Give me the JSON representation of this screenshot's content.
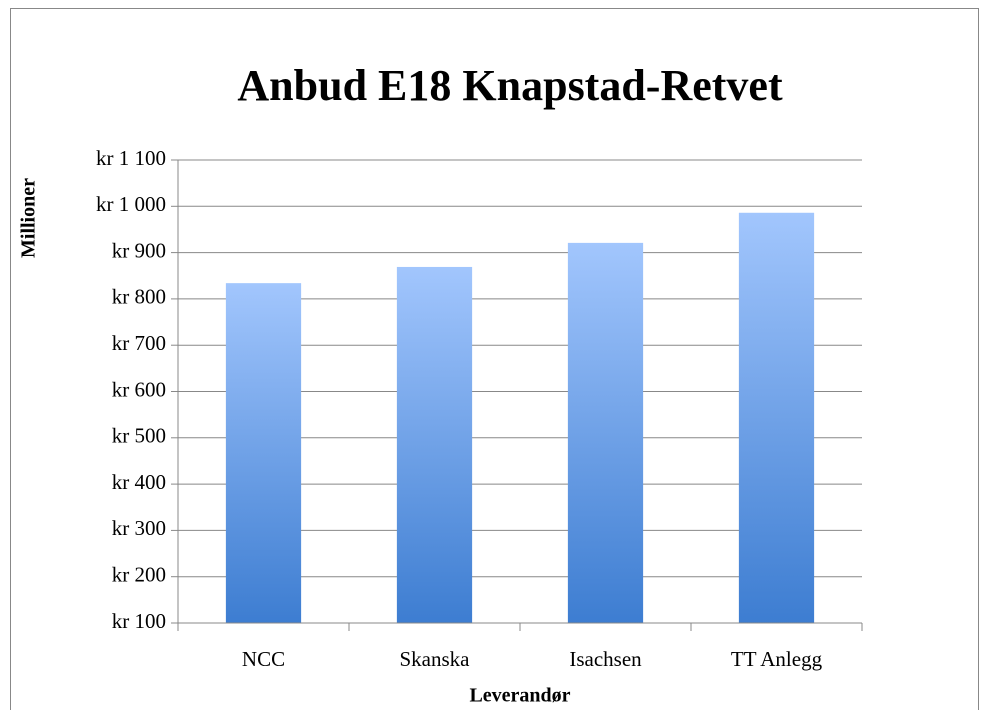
{
  "chart_data": {
    "type": "bar",
    "title": "Anbud  E18 Knapstad-Retvet",
    "x_label": "Leverandør",
    "y_label": "Millioner",
    "categories": [
      "NCC",
      "Skanska",
      "Isachsen",
      "TT Anlegg"
    ],
    "values": [
      834,
      869,
      921,
      986
    ],
    "gradient": [
      "#a2c6fd",
      "#3d7dd1"
    ],
    "ylim": [
      100,
      1100
    ],
    "yticks": [
      {
        "value": 100,
        "label": "kr 100"
      },
      {
        "value": 200,
        "label": "kr 200"
      },
      {
        "value": 300,
        "label": "kr 300"
      },
      {
        "value": 400,
        "label": "kr 400"
      },
      {
        "value": 500,
        "label": "kr 500"
      },
      {
        "value": 600,
        "label": "kr 600"
      },
      {
        "value": 700,
        "label": "kr 700"
      },
      {
        "value": 800,
        "label": "kr 800"
      },
      {
        "value": 900,
        "label": "kr 900"
      },
      {
        "value": 1000,
        "label": "kr 1 000"
      },
      {
        "value": 1100,
        "label": "kr 1 100"
      }
    ],
    "grid": true
  }
}
